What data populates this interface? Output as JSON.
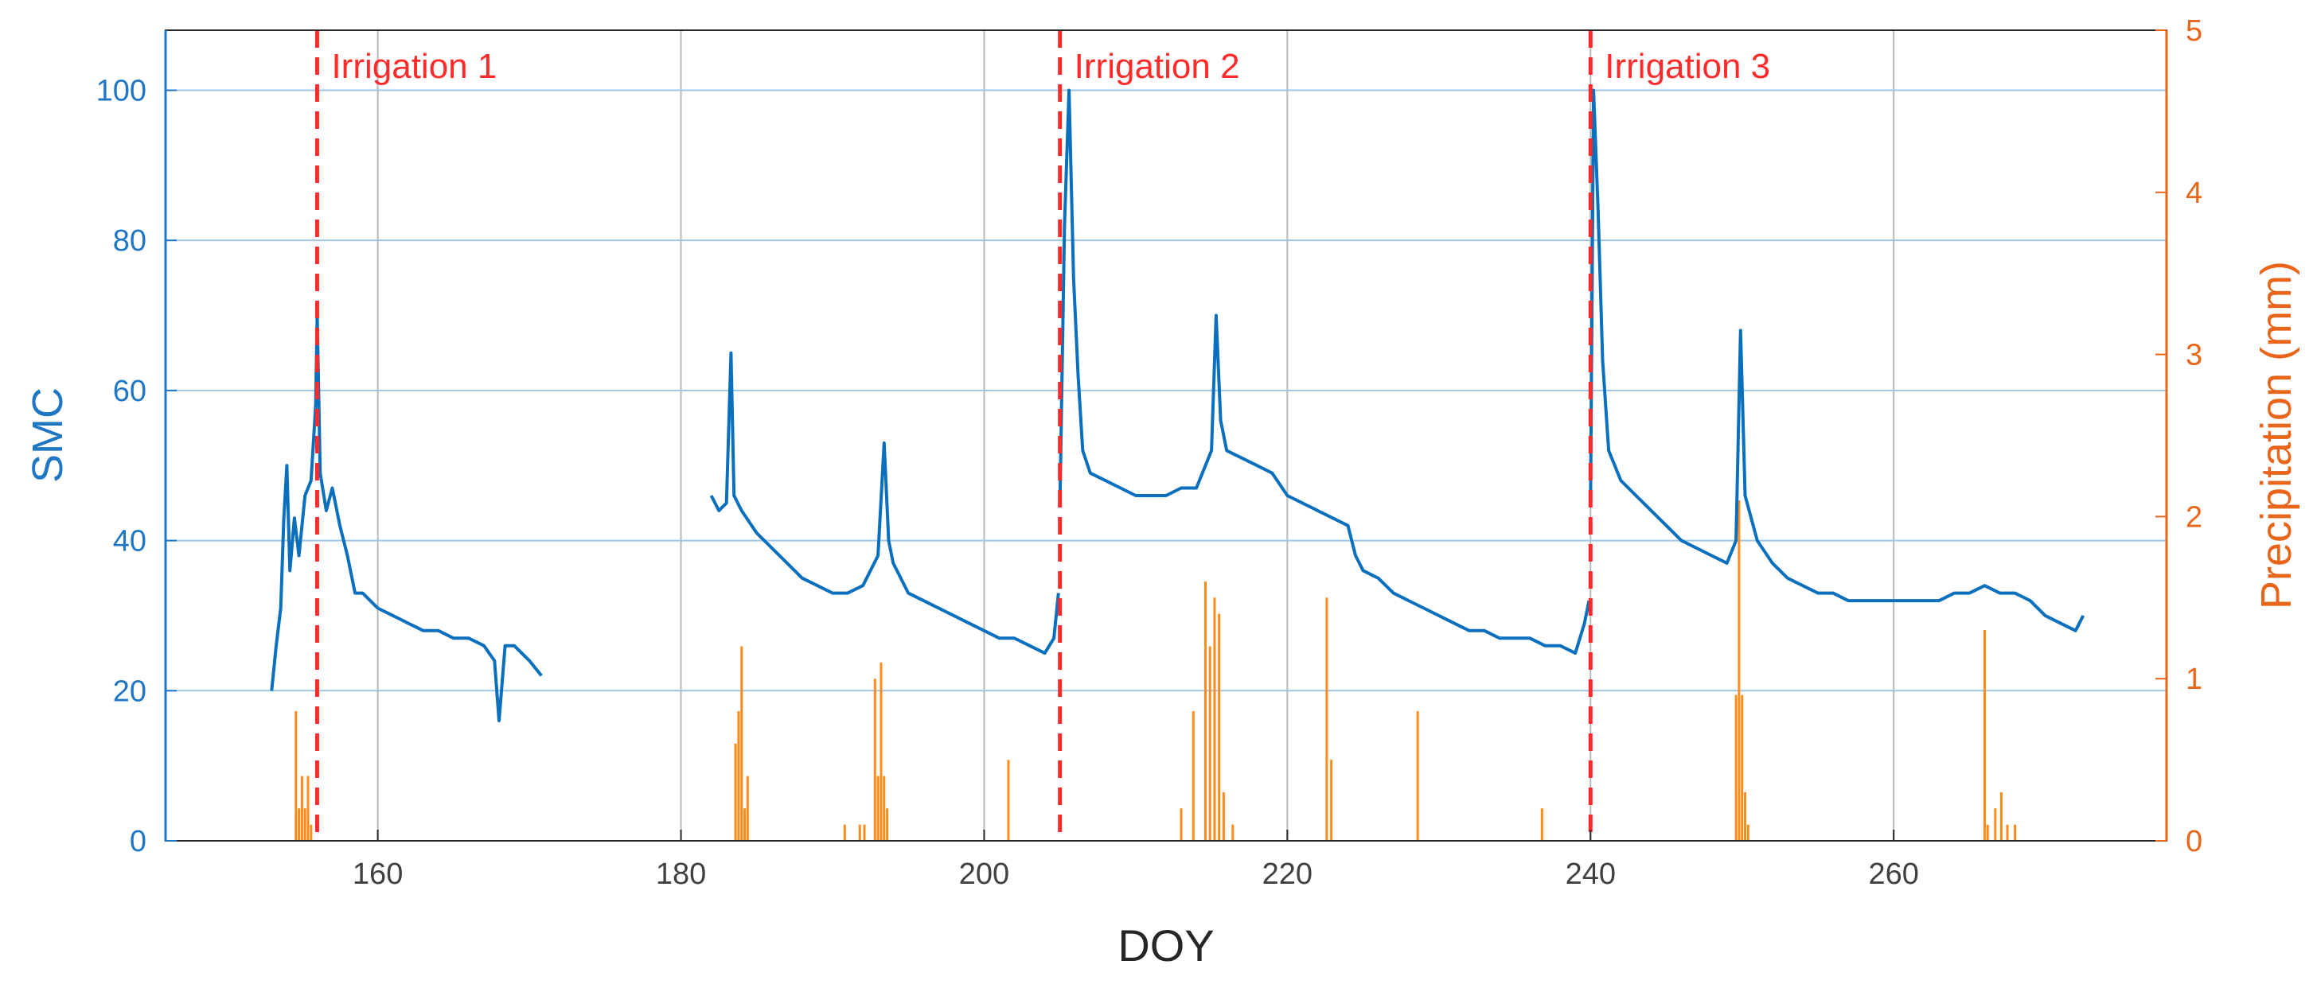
{
  "chart_data": {
    "type": "line",
    "title": "",
    "xlabel": "DOY",
    "ylabel_left": "SMC",
    "ylabel_right": "Precipitation (mm)",
    "xlim": [
      146,
      278
    ],
    "ylim_left": [
      0,
      108
    ],
    "ylim_right": [
      0,
      5
    ],
    "xticks": [
      160,
      180,
      200,
      220,
      240,
      260
    ],
    "yticks_left": [
      0,
      20,
      40,
      60,
      80,
      100
    ],
    "yticks_right": [
      0,
      1,
      2,
      3,
      4,
      5
    ],
    "grid": true,
    "colors": {
      "smc": "#0a6fbd",
      "precip": "#ff8c1a",
      "irrigation": "#ff2a2a",
      "left_axis": "#1f77c4",
      "right_axis": "#e8651a",
      "grid_vertical": "#b8b8b8",
      "grid_horizontal": "#9cc6e8"
    },
    "series": [
      {
        "name": "SMC",
        "axis": "left",
        "segments": [
          [
            [
              153.0,
              20
            ],
            [
              153.3,
              26
            ],
            [
              153.6,
              31
            ],
            [
              153.8,
              43
            ],
            [
              154.0,
              50
            ],
            [
              154.2,
              36
            ],
            [
              154.5,
              43
            ],
            [
              154.8,
              38
            ],
            [
              155.2,
              46
            ],
            [
              155.6,
              48
            ],
            [
              155.9,
              58
            ],
            [
              156.0,
              70
            ],
            [
              156.2,
              49
            ],
            [
              156.6,
              44
            ],
            [
              157.0,
              47
            ],
            [
              157.5,
              42
            ],
            [
              158.0,
              38
            ],
            [
              158.5,
              33
            ],
            [
              159.0,
              33
            ],
            [
              160.0,
              31
            ],
            [
              161.0,
              30
            ],
            [
              162.0,
              29
            ],
            [
              163.0,
              28
            ],
            [
              164.0,
              28
            ],
            [
              165.0,
              27
            ],
            [
              166.0,
              27
            ],
            [
              167.0,
              26
            ],
            [
              167.7,
              24
            ],
            [
              168.0,
              16
            ],
            [
              168.4,
              26
            ],
            [
              169.0,
              26
            ],
            [
              170.0,
              24
            ],
            [
              170.8,
              22
            ]
          ],
          [
            [
              182.0,
              46
            ],
            [
              182.5,
              44
            ],
            [
              183.0,
              45
            ],
            [
              183.3,
              65
            ],
            [
              183.5,
              46
            ],
            [
              184.0,
              44
            ],
            [
              185.0,
              41
            ],
            [
              186.0,
              39
            ],
            [
              187.0,
              37
            ],
            [
              188.0,
              35
            ],
            [
              189.0,
              34
            ],
            [
              190.0,
              33
            ],
            [
              191.0,
              33
            ],
            [
              192.0,
              34
            ],
            [
              193.0,
              38
            ],
            [
              193.4,
              53
            ],
            [
              193.7,
              40
            ],
            [
              194.0,
              37
            ],
            [
              195.0,
              33
            ],
            [
              196.0,
              32
            ],
            [
              197.0,
              31
            ],
            [
              198.0,
              30
            ],
            [
              199.0,
              29
            ],
            [
              200.0,
              28
            ],
            [
              201.0,
              27
            ],
            [
              202.0,
              27
            ],
            [
              203.0,
              26
            ],
            [
              204.0,
              25
            ],
            [
              204.6,
              27
            ],
            [
              204.9,
              33
            ]
          ],
          [
            [
              205.0,
              45
            ],
            [
              205.3,
              82
            ],
            [
              205.6,
              100
            ],
            [
              205.9,
              75
            ],
            [
              206.2,
              62
            ],
            [
              206.5,
              52
            ],
            [
              207.0,
              49
            ],
            [
              208.0,
              48
            ],
            [
              209.0,
              47
            ],
            [
              210.0,
              46
            ],
            [
              211.0,
              46
            ],
            [
              212.0,
              46
            ],
            [
              213.0,
              47
            ],
            [
              214.0,
              47
            ],
            [
              215.0,
              52
            ],
            [
              215.3,
              70
            ],
            [
              215.6,
              56
            ],
            [
              216.0,
              52
            ],
            [
              217.0,
              51
            ],
            [
              218.0,
              50
            ],
            [
              219.0,
              49
            ],
            [
              220.0,
              46
            ],
            [
              221.0,
              45
            ],
            [
              222.0,
              44
            ],
            [
              223.0,
              43
            ],
            [
              224.0,
              42
            ],
            [
              224.5,
              38
            ],
            [
              225.0,
              36
            ],
            [
              226.0,
              35
            ],
            [
              227.0,
              33
            ],
            [
              228.0,
              32
            ],
            [
              229.0,
              31
            ],
            [
              230.0,
              30
            ],
            [
              231.0,
              29
            ],
            [
              232.0,
              28
            ],
            [
              233.0,
              28
            ],
            [
              234.0,
              27
            ],
            [
              235.0,
              27
            ],
            [
              236.0,
              27
            ],
            [
              237.0,
              26
            ],
            [
              238.0,
              26
            ],
            [
              239.0,
              25
            ],
            [
              239.6,
              29
            ],
            [
              239.9,
              32
            ]
          ],
          [
            [
              240.0,
              45
            ],
            [
              240.2,
              100
            ],
            [
              240.5,
              84
            ],
            [
              240.8,
              64
            ],
            [
              241.2,
              52
            ],
            [
              242.0,
              48
            ],
            [
              243.0,
              46
            ],
            [
              244.0,
              44
            ],
            [
              245.0,
              42
            ],
            [
              246.0,
              40
            ],
            [
              247.0,
              39
            ],
            [
              248.0,
              38
            ],
            [
              249.0,
              37
            ],
            [
              249.6,
              40
            ],
            [
              249.9,
              68
            ],
            [
              250.2,
              46
            ],
            [
              251.0,
              40
            ],
            [
              252.0,
              37
            ],
            [
              253.0,
              35
            ],
            [
              254.0,
              34
            ],
            [
              255.0,
              33
            ],
            [
              256.0,
              33
            ],
            [
              257.0,
              32
            ],
            [
              258.0,
              32
            ],
            [
              259.0,
              32
            ],
            [
              260.0,
              32
            ],
            [
              261.0,
              32
            ],
            [
              262.0,
              32
            ],
            [
              263.0,
              32
            ],
            [
              264.0,
              33
            ],
            [
              265.0,
              33
            ],
            [
              266.0,
              34
            ],
            [
              267.0,
              33
            ],
            [
              268.0,
              33
            ],
            [
              269.0,
              32
            ],
            [
              270.0,
              30
            ],
            [
              271.0,
              29
            ],
            [
              272.0,
              28
            ],
            [
              272.5,
              30
            ]
          ]
        ]
      },
      {
        "name": "Precipitation",
        "axis": "right",
        "x": [
          154.6,
          154.8,
          155.0,
          155.2,
          155.4,
          155.6,
          183.6,
          183.8,
          184.0,
          184.2,
          184.4,
          190.8,
          191.8,
          192.1,
          192.8,
          193.0,
          193.2,
          193.4,
          193.6,
          201.6,
          213.0,
          213.8,
          214.6,
          214.9,
          215.2,
          215.5,
          215.8,
          216.4,
          222.6,
          222.9,
          228.6,
          236.8,
          249.6,
          249.8,
          250.0,
          250.2,
          250.4,
          266.0,
          266.2,
          266.7,
          267.1,
          267.5,
          268.0
        ],
        "y": [
          0.8,
          0.2,
          0.4,
          0.2,
          0.4,
          0.1,
          0.6,
          0.8,
          1.2,
          0.2,
          0.4,
          0.1,
          0.1,
          0.1,
          1.0,
          0.4,
          1.1,
          0.4,
          0.2,
          0.5,
          0.2,
          0.8,
          1.6,
          1.2,
          1.5,
          1.4,
          0.3,
          0.1,
          1.5,
          0.5,
          0.8,
          0.2,
          0.9,
          2.1,
          0.9,
          0.3,
          0.1,
          1.3,
          0.1,
          0.2,
          0.3,
          0.1,
          0.1
        ]
      }
    ],
    "annotations": [
      {
        "x": 156.0,
        "label": "Irrigation 1"
      },
      {
        "x": 205.0,
        "label": "Irrigation 2"
      },
      {
        "x": 240.0,
        "label": "Irrigation 3"
      }
    ]
  }
}
